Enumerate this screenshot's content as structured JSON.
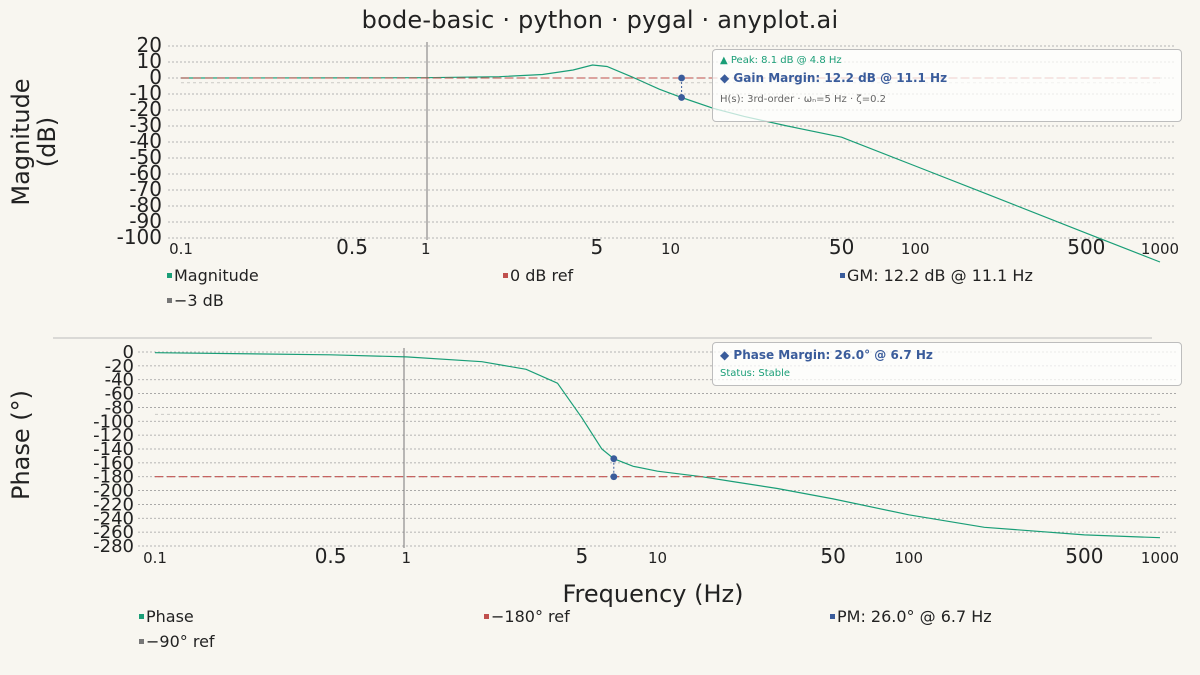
{
  "title": "bode-basic · python · pygal · anyplot.ai",
  "colors": {
    "background": "#f8f6f0",
    "magnitude": "#1a9e77",
    "phase": "#1a9e77",
    "reference": "#c0504d",
    "margin_marker": "#3a5c9b",
    "guide": "#777777",
    "grid": "#9e9e9e"
  },
  "magnitude_panel": {
    "ylabel": "Magnitude\n(dB)",
    "annotation": {
      "peak": "▲ Peak: 8.1 dB @ 4.8 Hz",
      "gain_margin": "◆ Gain Margin: 12.2 dB @ 11.1 Hz",
      "transfer": "H(s): 3rd-order · ωₙ=5 Hz · ζ=0.2"
    },
    "legend": [
      "Magnitude",
      "0 dB ref",
      "GM: 12.2 dB @ 11.1 Hz",
      "−3 dB"
    ]
  },
  "phase_panel": {
    "ylabel": "Phase (°)",
    "xlabel": "Frequency (Hz)",
    "annotation": {
      "phase_margin": "◆ Phase Margin: 26.0° @ 6.7 Hz",
      "status": "Status: Stable"
    },
    "legend": [
      "Phase",
      "−180° ref",
      "PM: 26.0° @ 6.7 Hz",
      "−90° ref"
    ]
  },
  "chart_data": [
    {
      "type": "line",
      "panel": "magnitude",
      "xscale": "log",
      "xlim": [
        0.1,
        1000
      ],
      "ylim": [
        -100,
        20
      ],
      "x_ticks": [
        {
          "value": 0.1,
          "label": "0.1",
          "major": false
        },
        {
          "value": 0.5,
          "label": "0.5",
          "major": true
        },
        {
          "value": 1,
          "label": "1",
          "major": false
        },
        {
          "value": 5,
          "label": "5",
          "major": true
        },
        {
          "value": 10,
          "label": "10",
          "major": false
        },
        {
          "value": 50,
          "label": "50",
          "major": true
        },
        {
          "value": 100,
          "label": "100",
          "major": false
        },
        {
          "value": 500,
          "label": "500",
          "major": true
        },
        {
          "value": 1000,
          "label": "1000",
          "major": false
        }
      ],
      "y_ticks": [
        20,
        10,
        0,
        -10,
        -20,
        -30,
        -40,
        -50,
        -60,
        -70,
        -80,
        -90,
        -100
      ],
      "grid": true,
      "series": [
        {
          "name": "Magnitude",
          "x": [
            0.1,
            0.5,
            1,
            2,
            3,
            4,
            4.8,
            5.5,
            7,
            9,
            11.1,
            15,
            20,
            30,
            50,
            100,
            200,
            500,
            1000
          ],
          "y": [
            0,
            0.05,
            0.2,
            0.8,
            2.2,
            5.0,
            8.1,
            7.2,
            0.5,
            -7,
            -12.2,
            -19,
            -24,
            -30,
            -37,
            -55,
            -73,
            -97,
            -115
          ]
        },
        {
          "name": "0 dB ref",
          "x": [
            0.1,
            1000
          ],
          "y": [
            0,
            0
          ]
        },
        {
          "name": "GM: 12.2 dB @ 11.1 Hz",
          "x": [
            11.1,
            11.1
          ],
          "y": [
            0,
            -12.2
          ]
        },
        {
          "name": "−3 dB",
          "x": [
            0.1,
            1000
          ],
          "y": [
            -3,
            -3
          ]
        }
      ]
    },
    {
      "type": "line",
      "panel": "phase",
      "xscale": "log",
      "xlim": [
        0.1,
        1000
      ],
      "ylim": [
        -280,
        0
      ],
      "x_ticks": [
        {
          "value": 0.1,
          "label": "0.1",
          "major": false
        },
        {
          "value": 0.5,
          "label": "0.5",
          "major": true
        },
        {
          "value": 1,
          "label": "1",
          "major": false
        },
        {
          "value": 5,
          "label": "5",
          "major": true
        },
        {
          "value": 10,
          "label": "10",
          "major": false
        },
        {
          "value": 50,
          "label": "50",
          "major": true
        },
        {
          "value": 100,
          "label": "100",
          "major": false
        },
        {
          "value": 500,
          "label": "500",
          "major": true
        },
        {
          "value": 1000,
          "label": "1000",
          "major": false
        }
      ],
      "y_ticks": [
        0,
        -20,
        -40,
        -60,
        -80,
        -100,
        -120,
        -140,
        -160,
        -180,
        -200,
        -220,
        -240,
        -260,
        -280
      ],
      "grid": true,
      "series": [
        {
          "name": "Phase",
          "x": [
            0.1,
            0.5,
            1,
            2,
            3,
            4,
            5,
            6,
            6.7,
            8,
            10,
            15,
            20,
            30,
            50,
            100,
            200,
            500,
            1000
          ],
          "y": [
            -1,
            -4,
            -7,
            -14,
            -25,
            -45,
            -95,
            -140,
            -154,
            -165,
            -172,
            -180,
            -187,
            -197,
            -212,
            -235,
            -253,
            -264,
            -268
          ]
        },
        {
          "name": "−180° ref",
          "x": [
            0.1,
            1000
          ],
          "y": [
            -180,
            -180
          ]
        },
        {
          "name": "PM: 26.0° @ 6.7 Hz",
          "x": [
            6.7,
            6.7
          ],
          "y": [
            -180,
            -154
          ]
        },
        {
          "name": "−90° ref",
          "x": [
            0.1,
            1000
          ],
          "y": [
            -90,
            -90
          ]
        }
      ]
    }
  ]
}
